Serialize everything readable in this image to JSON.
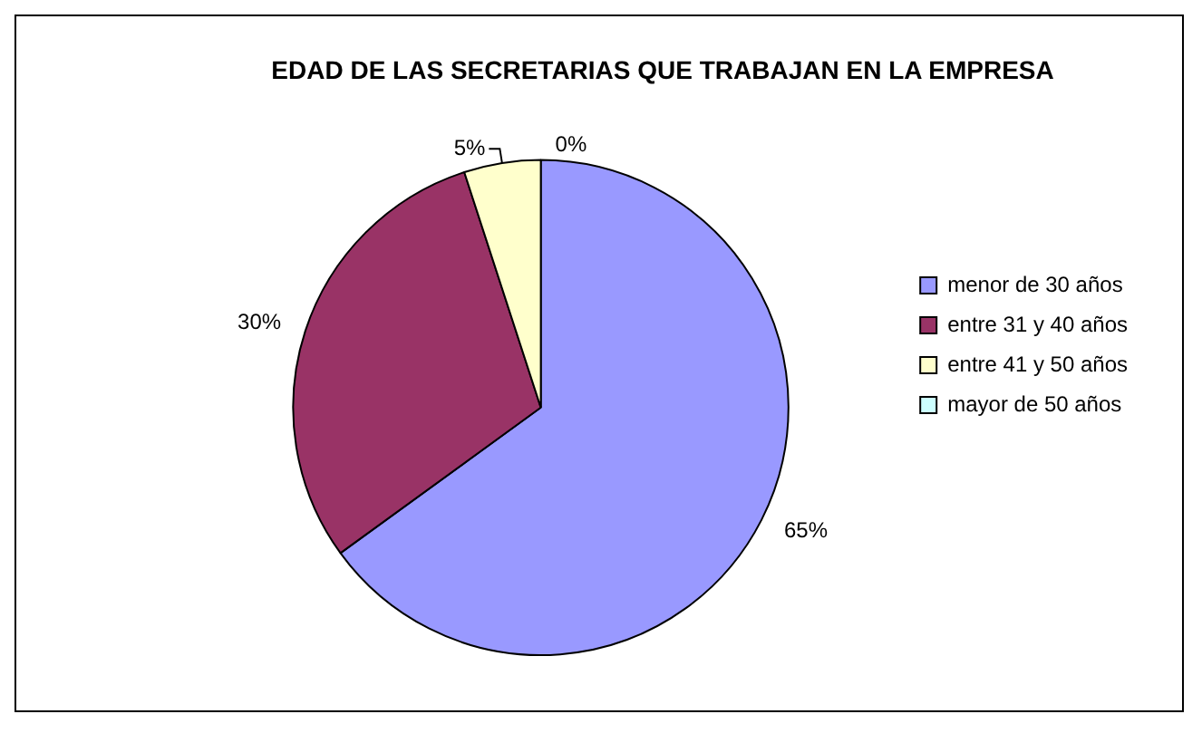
{
  "chart_data": {
    "type": "pie",
    "title": "EDAD DE LAS SECRETARIAS QUE TRABAJAN EN LA EMPRESA",
    "categories": [
      "menor de 30 años",
      "entre 31 y 40 años",
      "entre 41 y 50 años",
      "mayor de 50 años"
    ],
    "values": [
      65,
      30,
      5,
      0
    ],
    "colors": [
      "#9999ff",
      "#993366",
      "#ffffcc",
      "#ccffff"
    ],
    "value_labels": [
      "65%",
      "30%",
      "5%",
      "0%"
    ],
    "legend": "right"
  }
}
